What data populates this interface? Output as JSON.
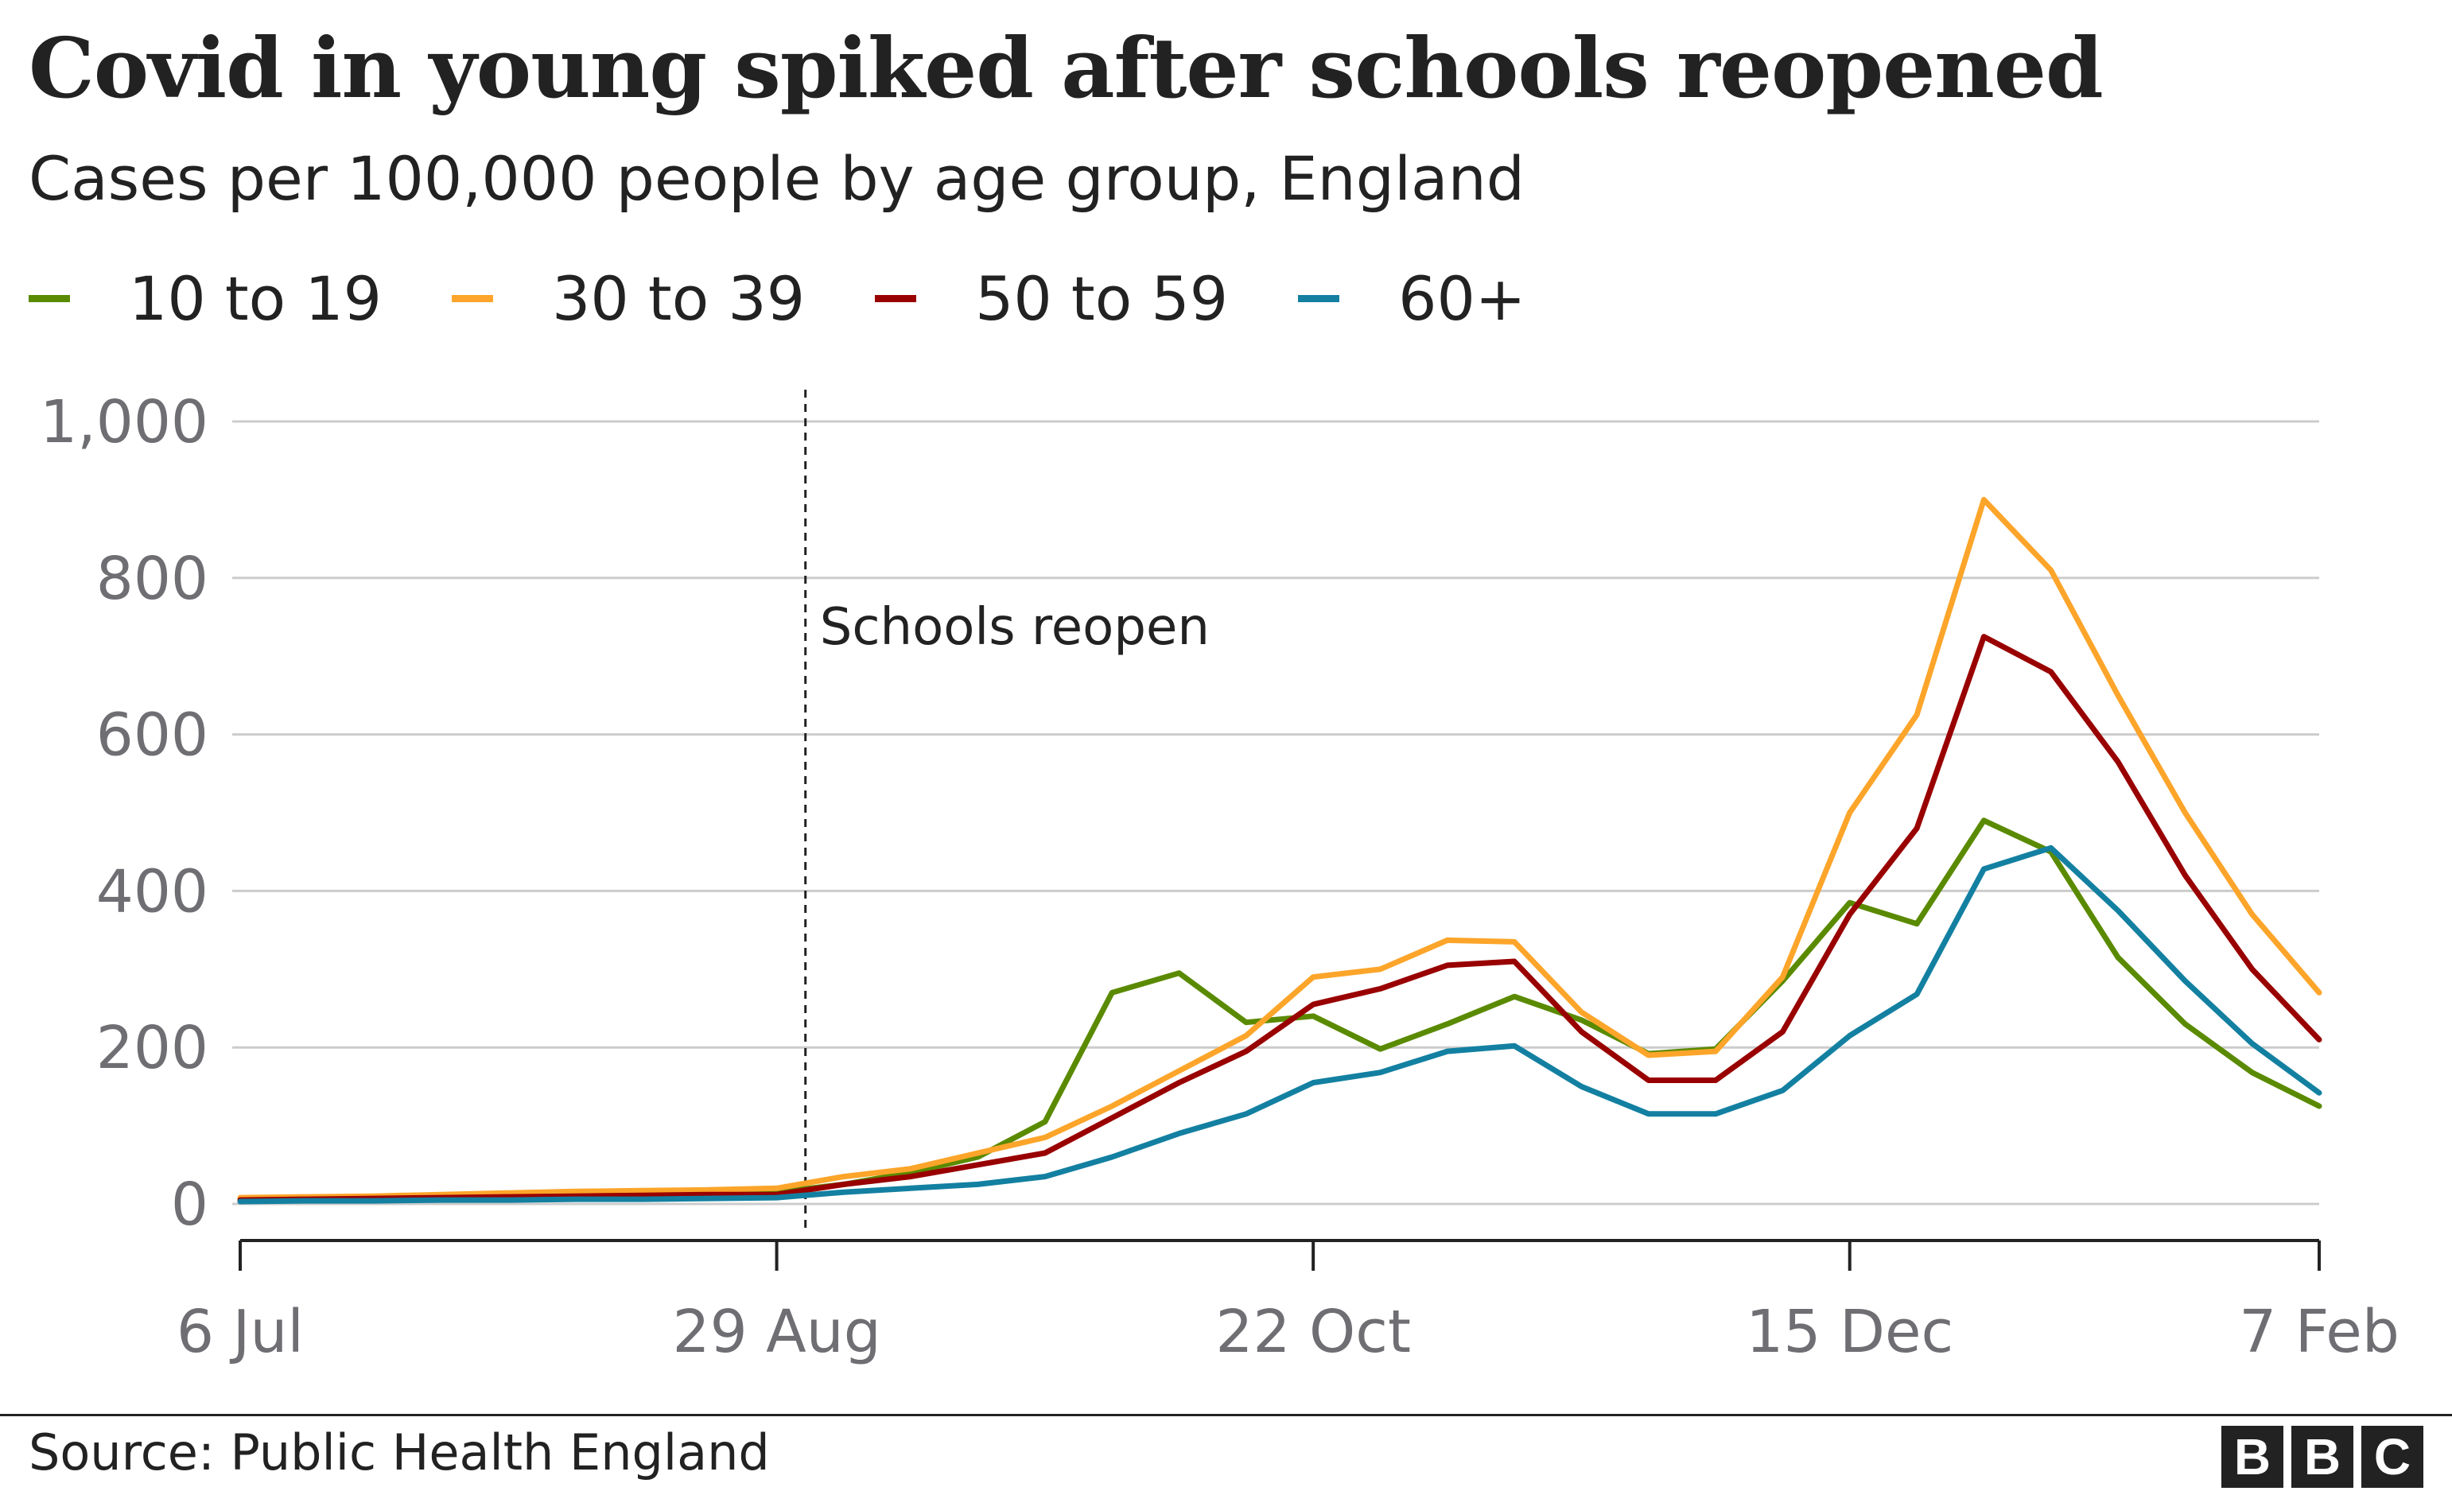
{
  "chart_data": {
    "type": "line",
    "title": "Covid in young spiked after schools reopened",
    "subtitle": "Cases per 100,000 people by age group, England",
    "xlabel": "",
    "ylabel": "",
    "ylim": [
      0,
      1000
    ],
    "yticks": [
      0,
      200,
      400,
      600,
      800,
      1000
    ],
    "ytick_labels": [
      "0",
      "200",
      "400",
      "600",
      "800",
      "1,000"
    ],
    "xtick_labels": [
      "6 Jul",
      "29 Aug",
      "22 Oct",
      "15 Dec",
      "7 Feb"
    ],
    "x": [
      "2020-07-06",
      "2020-07-13",
      "2020-07-20",
      "2020-07-27",
      "2020-08-03",
      "2020-08-10",
      "2020-08-17",
      "2020-08-24",
      "2020-08-31",
      "2020-09-07",
      "2020-09-14",
      "2020-09-21",
      "2020-09-28",
      "2020-10-05",
      "2020-10-12",
      "2020-10-19",
      "2020-10-26",
      "2020-11-02",
      "2020-11-09",
      "2020-11-16",
      "2020-11-23",
      "2020-11-30",
      "2020-12-07",
      "2020-12-14",
      "2020-12-21",
      "2020-12-28",
      "2021-01-04",
      "2021-01-11",
      "2021-01-18",
      "2021-01-25",
      "2021-02-01",
      "2021-02-08"
    ],
    "grid": true,
    "legend_position": "top-left",
    "series": [
      {
        "name": "10 to 19",
        "color": "#5a8a00",
        "values": [
          5,
          6,
          7,
          8,
          10,
          12,
          13,
          15,
          15,
          25,
          40,
          60,
          105,
          270,
          295,
          232,
          240,
          198,
          230,
          265,
          235,
          192,
          198,
          285,
          385,
          358,
          490,
          450,
          315,
          230,
          168,
          125
        ]
      },
      {
        "name": "30 to 39",
        "color": "#fca52a",
        "values": [
          8,
          9,
          10,
          12,
          14,
          16,
          17,
          18,
          20,
          35,
          45,
          65,
          85,
          125,
          170,
          215,
          290,
          300,
          337,
          335,
          245,
          190,
          195,
          290,
          500,
          625,
          900,
          810,
          650,
          500,
          370,
          270
        ]
      },
      {
        "name": "50 to 59",
        "color": "#990000",
        "values": [
          5,
          6,
          7,
          8,
          9,
          10,
          11,
          12,
          12,
          25,
          35,
          50,
          65,
          110,
          155,
          195,
          255,
          275,
          305,
          310,
          220,
          158,
          158,
          220,
          370,
          480,
          725,
          680,
          565,
          420,
          300,
          210
        ]
      },
      {
        "name": "60+",
        "color": "#1380a1",
        "values": [
          3,
          4,
          4,
          5,
          5,
          6,
          6,
          7,
          8,
          15,
          20,
          25,
          35,
          60,
          90,
          115,
          155,
          168,
          195,
          202,
          150,
          115,
          115,
          145,
          215,
          268,
          428,
          455,
          375,
          285,
          205,
          142
        ]
      }
    ],
    "annotations": [
      {
        "label": "Schools reopen",
        "x": "2020-09-03",
        "style": "dashed-vertical"
      }
    ]
  },
  "footer": {
    "source": "Source: Public Health England",
    "logo_letters": [
      "B",
      "B",
      "C"
    ]
  }
}
